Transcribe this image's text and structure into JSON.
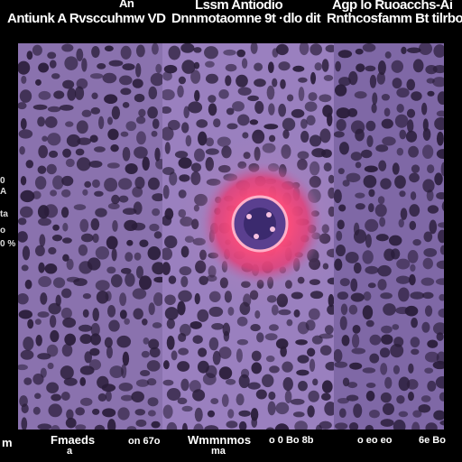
{
  "header": {
    "top_center_small": "An",
    "top_left": "Antiunk A Rvsccuhmw VD",
    "top_middle_1": "Lssm Antiodio",
    "top_middle_2": "Dnnmotaomne  9t ·dlo dit",
    "top_right_1": "Agp lo Ruoacchs-Ai",
    "top_right_2": "Rnthcosfamm  Bt tilrbo"
  },
  "sidebar": {
    "label_a": "0",
    "label_b": "A",
    "label_c": "ta",
    "label_d": "o",
    "label_e": "0 %"
  },
  "footer": {
    "left_mark": "m",
    "label_1": "Fmaeds",
    "label_1_sub": "a",
    "label_2": "on 67o",
    "label_3": "Wmmnmos",
    "label_3_sub": "ma",
    "label_4": "o  0  Bo  8b",
    "label_5": "o  eo  eo",
    "label_6": "6e  Bo"
  },
  "colors": {
    "background": "#000000",
    "tissue": "#8b74b0",
    "pores": "#2a1d3a",
    "hotspot": "#ff4d7a",
    "core": "#3b2a6e"
  }
}
